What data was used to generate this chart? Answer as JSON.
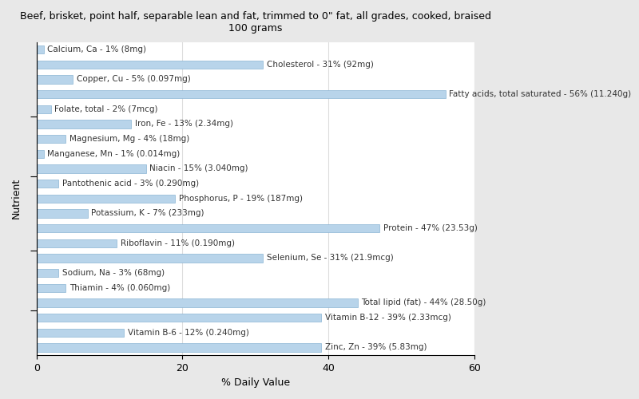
{
  "title": "Beef, brisket, point half, separable lean and fat, trimmed to 0\" fat, all grades, cooked, braised\n100 grams",
  "xlabel": "% Daily Value",
  "ylabel": "Nutrient",
  "fig_background_color": "#e8e8e8",
  "plot_background_color": "#ffffff",
  "bar_color": "#b8d4ea",
  "bar_edge_color": "#8ab4d4",
  "xlim": [
    0,
    60
  ],
  "xticks": [
    0,
    20,
    40,
    60
  ],
  "nutrients": [
    {
      "label": "Calcium, Ca - 1% (8mg)",
      "value": 1
    },
    {
      "label": "Cholesterol - 31% (92mg)",
      "value": 31
    },
    {
      "label": "Copper, Cu - 5% (0.097mg)",
      "value": 5
    },
    {
      "label": "Fatty acids, total saturated - 56% (11.240g)",
      "value": 56
    },
    {
      "label": "Folate, total - 2% (7mcg)",
      "value": 2
    },
    {
      "label": "Iron, Fe - 13% (2.34mg)",
      "value": 13
    },
    {
      "label": "Magnesium, Mg - 4% (18mg)",
      "value": 4
    },
    {
      "label": "Manganese, Mn - 1% (0.014mg)",
      "value": 1
    },
    {
      "label": "Niacin - 15% (3.040mg)",
      "value": 15
    },
    {
      "label": "Pantothenic acid - 3% (0.290mg)",
      "value": 3
    },
    {
      "label": "Phosphorus, P - 19% (187mg)",
      "value": 19
    },
    {
      "label": "Potassium, K - 7% (233mg)",
      "value": 7
    },
    {
      "label": "Protein - 47% (23.53g)",
      "value": 47
    },
    {
      "label": "Riboflavin - 11% (0.190mg)",
      "value": 11
    },
    {
      "label": "Selenium, Se - 31% (21.9mcg)",
      "value": 31
    },
    {
      "label": "Sodium, Na - 3% (68mg)",
      "value": 3
    },
    {
      "label": "Thiamin - 4% (0.060mg)",
      "value": 4
    },
    {
      "label": "Total lipid (fat) - 44% (28.50g)",
      "value": 44
    },
    {
      "label": "Vitamin B-12 - 39% (2.33mcg)",
      "value": 39
    },
    {
      "label": "Vitamin B-6 - 12% (0.240mg)",
      "value": 12
    },
    {
      "label": "Zinc, Zn - 39% (5.83mg)",
      "value": 39
    }
  ],
  "title_fontsize": 9,
  "label_fontsize": 7.5,
  "axis_label_fontsize": 9,
  "bar_height": 0.55
}
